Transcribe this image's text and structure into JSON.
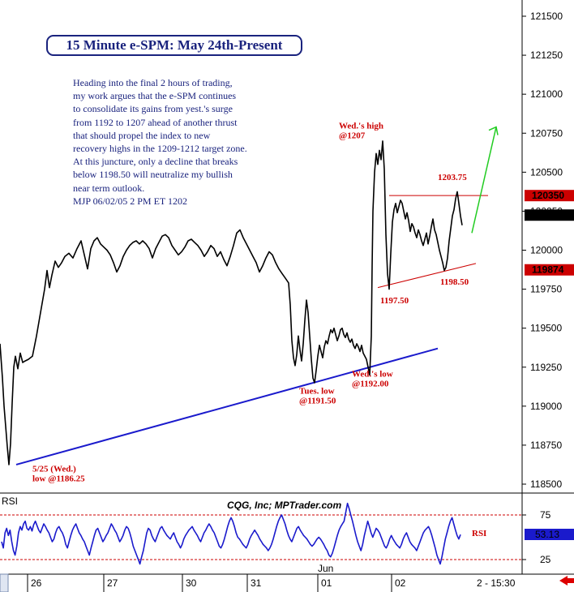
{
  "title": "15 Minute e-SPM: May 24th-Present",
  "commentary": [
    "Heading into the final 2 hours of trading,",
    "my work argues that the e-SPM continues",
    "to consolidate its gains from yest.'s surge",
    "from 1192 to 1207 ahead of another thrust",
    "that should propel the index to new",
    "recovery highs in the 1209-1212 target zone.",
    "At this juncture, only a decline that breaks",
    "below 1198.50 will neutralize my bullish",
    "near term outlook.",
    "MJP 06/02/05 2 PM ET 1202"
  ],
  "watermark": "CQG, Inc; MPTrader.com",
  "colors": {
    "price": "#000000",
    "trendline": "#1a1acc",
    "annotation": "#cc0000",
    "arrow": "#22cc22",
    "rsi": "#1a1acc",
    "rsi_guides": "#cc0000",
    "title": "#1a237e",
    "last_price_box": "#000000",
    "level_box": "#cc0000",
    "rsi_box": "#1a1acc"
  },
  "chart_data": [
    {
      "type": "line",
      "name": "price",
      "ylim": [
        1184.5,
        1217.0
      ],
      "yticks": [
        "121500",
        "121250",
        "121000",
        "120750",
        "120500",
        "120250",
        "120000",
        "119750",
        "119500",
        "119250",
        "119000",
        "118750",
        "118500"
      ],
      "xticks": [
        "26",
        "27",
        "30",
        "31",
        "01",
        "02"
      ],
      "month_label": "Jun",
      "time_label": "2 - 15:30",
      "path": [
        [
          0,
          1194.0
        ],
        [
          3,
          1191.8
        ],
        [
          5,
          1190.0
        ],
        [
          7,
          1188.7
        ],
        [
          9,
          1187.4
        ],
        [
          11,
          1186.25
        ],
        [
          13,
          1187.6
        ],
        [
          15,
          1190.2
        ],
        [
          17,
          1192.5
        ],
        [
          19,
          1193.2
        ],
        [
          22,
          1192.4
        ],
        [
          25,
          1193.4
        ],
        [
          28,
          1192.8
        ],
        [
          31,
          1192.9
        ],
        [
          35,
          1193.0
        ],
        [
          40,
          1193.2
        ],
        [
          45,
          1194.5
        ],
        [
          50,
          1196.0
        ],
        [
          55,
          1197.5
        ],
        [
          58,
          1198.7
        ],
        [
          61,
          1197.6
        ],
        [
          64,
          1198.4
        ],
        [
          68,
          1199.3
        ],
        [
          72,
          1198.9
        ],
        [
          76,
          1199.2
        ],
        [
          80,
          1199.6
        ],
        [
          85,
          1199.8
        ],
        [
          90,
          1199.5
        ],
        [
          95,
          1200.1
        ],
        [
          100,
          1200.6
        ],
        [
          104,
          1199.7
        ],
        [
          108,
          1198.8
        ],
        [
          112,
          1200.1
        ],
        [
          116,
          1200.6
        ],
        [
          120,
          1200.8
        ],
        [
          124,
          1200.4
        ],
        [
          128,
          1200.2
        ],
        [
          132,
          1200.0
        ],
        [
          136,
          1199.7
        ],
        [
          140,
          1199.2
        ],
        [
          144,
          1198.6
        ],
        [
          148,
          1199.0
        ],
        [
          152,
          1199.6
        ],
        [
          156,
          1200.0
        ],
        [
          160,
          1200.3
        ],
        [
          164,
          1200.5
        ],
        [
          168,
          1200.6
        ],
        [
          172,
          1200.4
        ],
        [
          176,
          1200.6
        ],
        [
          180,
          1200.4
        ],
        [
          184,
          1200.1
        ],
        [
          188,
          1199.5
        ],
        [
          192,
          1200.1
        ],
        [
          196,
          1200.5
        ],
        [
          200,
          1200.9
        ],
        [
          204,
          1201.0
        ],
        [
          208,
          1200.8
        ],
        [
          212,
          1200.3
        ],
        [
          216,
          1200.0
        ],
        [
          220,
          1199.7
        ],
        [
          224,
          1199.9
        ],
        [
          228,
          1200.2
        ],
        [
          232,
          1200.6
        ],
        [
          236,
          1200.7
        ],
        [
          240,
          1200.5
        ],
        [
          244,
          1200.3
        ],
        [
          248,
          1200.0
        ],
        [
          252,
          1199.6
        ],
        [
          256,
          1199.9
        ],
        [
          260,
          1200.3
        ],
        [
          264,
          1200.1
        ],
        [
          268,
          1199.6
        ],
        [
          272,
          1199.9
        ],
        [
          276,
          1199.4
        ],
        [
          280,
          1199.0
        ],
        [
          284,
          1199.6
        ],
        [
          288,
          1200.3
        ],
        [
          292,
          1201.1
        ],
        [
          296,
          1201.3
        ],
        [
          300,
          1200.8
        ],
        [
          304,
          1200.4
        ],
        [
          308,
          1200.0
        ],
        [
          312,
          1199.6
        ],
        [
          316,
          1199.2
        ],
        [
          320,
          1198.6
        ],
        [
          324,
          1199.0
        ],
        [
          328,
          1199.5
        ],
        [
          332,
          1199.9
        ],
        [
          336,
          1199.7
        ],
        [
          340,
          1199.2
        ],
        [
          344,
          1198.8
        ],
        [
          348,
          1198.5
        ],
        [
          352,
          1198.2
        ],
        [
          356,
          1197.9
        ],
        [
          358,
          1196.5
        ],
        [
          360,
          1194.2
        ],
        [
          362,
          1193.1
        ],
        [
          364,
          1192.6
        ],
        [
          366,
          1193.3
        ],
        [
          368,
          1194.5
        ],
        [
          370,
          1193.6
        ],
        [
          372,
          1192.9
        ],
        [
          374,
          1194.0
        ],
        [
          376,
          1195.5
        ],
        [
          378,
          1196.8
        ],
        [
          380,
          1196.0
        ],
        [
          382,
          1194.5
        ],
        [
          384,
          1193.0
        ],
        [
          386,
          1191.8
        ],
        [
          388,
          1191.5
        ],
        [
          390,
          1192.3
        ],
        [
          392,
          1193.2
        ],
        [
          394,
          1193.9
        ],
        [
          396,
          1193.5
        ],
        [
          398,
          1193.1
        ],
        [
          400,
          1193.8
        ],
        [
          402,
          1194.2
        ],
        [
          404,
          1194.0
        ],
        [
          406,
          1194.5
        ],
        [
          408,
          1194.9
        ],
        [
          410,
          1194.7
        ],
        [
          412,
          1195.0
        ],
        [
          414,
          1194.6
        ],
        [
          416,
          1194.2
        ],
        [
          418,
          1194.5
        ],
        [
          420,
          1194.9
        ],
        [
          422,
          1195.0
        ],
        [
          424,
          1194.6
        ],
        [
          426,
          1194.4
        ],
        [
          428,
          1194.7
        ],
        [
          430,
          1194.3
        ],
        [
          432,
          1194.1
        ],
        [
          434,
          1194.3
        ],
        [
          436,
          1193.9
        ],
        [
          438,
          1193.7
        ],
        [
          440,
          1194.0
        ],
        [
          442,
          1193.8
        ],
        [
          444,
          1193.5
        ],
        [
          446,
          1193.9
        ],
        [
          448,
          1193.4
        ],
        [
          450,
          1193.2
        ],
        [
          452,
          1193.0
        ],
        [
          454,
          1192.5
        ],
        [
          456,
          1192.0
        ],
        [
          458,
          1194.5
        ],
        [
          459,
          1199.0
        ],
        [
          460,
          1202.5
        ],
        [
          462,
          1205.0
        ],
        [
          464,
          1206.2
        ],
        [
          466,
          1205.5
        ],
        [
          468,
          1206.4
        ],
        [
          470,
          1205.8
        ],
        [
          472,
          1207.0
        ],
        [
          474,
          1205.2
        ],
        [
          476,
          1201.0
        ],
        [
          478,
          1198.5
        ],
        [
          480,
          1197.5
        ],
        [
          482,
          1199.8
        ],
        [
          484,
          1201.8
        ],
        [
          486,
          1202.6
        ],
        [
          488,
          1203.0
        ],
        [
          490,
          1202.4
        ],
        [
          492,
          1202.8
        ],
        [
          494,
          1203.2
        ],
        [
          496,
          1203.0
        ],
        [
          498,
          1202.5
        ],
        [
          500,
          1202.0
        ],
        [
          502,
          1202.4
        ],
        [
          504,
          1201.9
        ],
        [
          506,
          1201.2
        ],
        [
          508,
          1201.7
        ],
        [
          510,
          1201.5
        ],
        [
          512,
          1201.1
        ],
        [
          514,
          1200.8
        ],
        [
          516,
          1201.3
        ],
        [
          518,
          1201.0
        ],
        [
          520,
          1200.6
        ],
        [
          522,
          1200.3
        ],
        [
          524,
          1200.7
        ],
        [
          526,
          1201.1
        ],
        [
          528,
          1200.4
        ],
        [
          530,
          1200.9
        ],
        [
          532,
          1201.5
        ],
        [
          534,
          1202.0
        ],
        [
          536,
          1201.3
        ],
        [
          538,
          1201.0
        ],
        [
          540,
          1200.5
        ],
        [
          542,
          1200.0
        ],
        [
          544,
          1199.6
        ],
        [
          546,
          1199.2
        ],
        [
          548,
          1198.7
        ],
        [
          550,
          1198.9
        ],
        [
          552,
          1199.5
        ],
        [
          554,
          1200.6
        ],
        [
          556,
          1201.4
        ],
        [
          558,
          1202.2
        ],
        [
          560,
          1202.6
        ],
        [
          562,
          1203.3
        ],
        [
          564,
          1203.75
        ],
        [
          566,
          1203.0
        ],
        [
          568,
          1202.2
        ],
        [
          570,
          1201.6
        ]
      ],
      "trendlines": [
        {
          "name": "support-trendline",
          "from": [
            20,
            1186.25
          ],
          "to": [
            540,
            1193.7
          ]
        },
        {
          "name": "resistance-line",
          "from": [
            480,
            1203.5
          ],
          "to": [
            602,
            1203.5
          ]
        },
        {
          "name": "lower-channel-line",
          "from": [
            466,
            1197.6
          ],
          "to": [
            587,
            1199.15
          ]
        }
      ],
      "target_arrow": {
        "from": [
          582,
          1201.1
        ],
        "to": [
          612,
          1207.9
        ]
      },
      "price_boxes": [
        {
          "label": "120350",
          "value": 1203.5,
          "style": "level"
        },
        {
          "label": "120225",
          "value": 1202.25,
          "style": "last"
        },
        {
          "label": "119874",
          "value": 1198.74,
          "style": "level"
        }
      ],
      "annotations": [
        {
          "lines": [
            "Wed.'s high",
            "@1207"
          ],
          "anchor": [
            418,
            1207.8
          ]
        },
        {
          "lines": [
            "1203.75"
          ],
          "anchor": [
            540,
            1204.5
          ]
        },
        {
          "lines": [
            "1198.50"
          ],
          "anchor": [
            543,
            1197.8
          ]
        },
        {
          "lines": [
            "1197.50"
          ],
          "anchor": [
            469,
            1196.6
          ]
        },
        {
          "lines": [
            "Wed.'s low",
            "@1192.00"
          ],
          "anchor": [
            434,
            1191.9
          ]
        },
        {
          "lines": [
            "Tues. low",
            "@1191.50"
          ],
          "anchor": [
            369,
            1190.8
          ]
        },
        {
          "lines": [
            "5/25 (Wed.)",
            "low @1186.25"
          ],
          "anchor": [
            40,
            1185.8
          ]
        }
      ]
    },
    {
      "type": "line",
      "name": "RSI",
      "ylim": [
        0,
        100
      ],
      "yticks": [
        "75",
        "25"
      ],
      "panel_label": "RSI",
      "series_label": "RSI",
      "last_value_label": "53.13",
      "guide_levels": [
        75,
        25
      ],
      "values": [
        45,
        38,
        55,
        60,
        52,
        58,
        45,
        35,
        30,
        40,
        55,
        62,
        58,
        65,
        68,
        60,
        58,
        62,
        57,
        64,
        68,
        63,
        58,
        55,
        60,
        65,
        62,
        58,
        55,
        50,
        45,
        48,
        55,
        60,
        62,
        58,
        55,
        50,
        42,
        38,
        45,
        52,
        58,
        62,
        65,
        60,
        55,
        52,
        48,
        45,
        40,
        35,
        30,
        38,
        45,
        52,
        58,
        60,
        55,
        50,
        45,
        48,
        52,
        55,
        60,
        65,
        62,
        58,
        55,
        50,
        45,
        48,
        52,
        58,
        62,
        60,
        55,
        48,
        40,
        35,
        30,
        25,
        20,
        28,
        35,
        45,
        55,
        60,
        58,
        52,
        48,
        45,
        50,
        55,
        60,
        62,
        58,
        55,
        52,
        50,
        48,
        52,
        55,
        50,
        45,
        42,
        38,
        42,
        48,
        52,
        55,
        58,
        60,
        62,
        58,
        55,
        52,
        48,
        45,
        50,
        55,
        58,
        62,
        65,
        62,
        58,
        55,
        50,
        45,
        40,
        38,
        42,
        48,
        55,
        62,
        68,
        72,
        68,
        62,
        55,
        50,
        48,
        45,
        42,
        40,
        38,
        42,
        48,
        52,
        55,
        58,
        55,
        52,
        48,
        45,
        42,
        40,
        38,
        35,
        38,
        42,
        48,
        55,
        62,
        68,
        72,
        75,
        70,
        65,
        58,
        52,
        48,
        45,
        50,
        55,
        60,
        62,
        58,
        55,
        52,
        50,
        48,
        45,
        42,
        40,
        42,
        45,
        48,
        50,
        48,
        45,
        42,
        38,
        35,
        30,
        28,
        32,
        38,
        45,
        52,
        58,
        62,
        65,
        68,
        78,
        88,
        82,
        75,
        68,
        60,
        52,
        45,
        40,
        35,
        42,
        52,
        60,
        68,
        62,
        55,
        50,
        55,
        60,
        58,
        55,
        50,
        45,
        40,
        38,
        42,
        48,
        52,
        48,
        45,
        42,
        40,
        38,
        42,
        48,
        52,
        55,
        50,
        45,
        42,
        40,
        38,
        35,
        40,
        45,
        50,
        55,
        58,
        60,
        62,
        58,
        52,
        45,
        38,
        30,
        25,
        20,
        28,
        38,
        48,
        55,
        62,
        68,
        72,
        65,
        58,
        52,
        48,
        53
      ]
    }
  ]
}
